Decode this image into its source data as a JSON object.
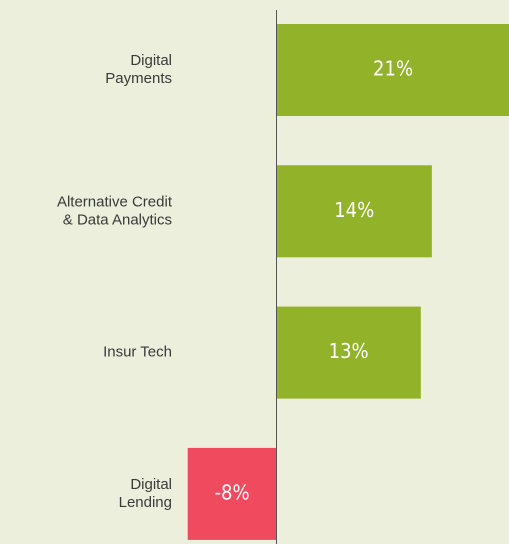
{
  "chart_data": {
    "type": "bar",
    "orientation": "horizontal",
    "categories": [
      "Digital\nPayments",
      "Alternative Credit\n& Data Analytics",
      "Insur Tech",
      "Digital\nLending"
    ],
    "values": [
      21,
      14,
      13,
      -8
    ],
    "value_labels": [
      "21%",
      "14%",
      "13%",
      "-8%"
    ],
    "colors": [
      "#92b22a",
      "#92b22a",
      "#92b22a",
      "#ef4a5e"
    ]
  }
}
